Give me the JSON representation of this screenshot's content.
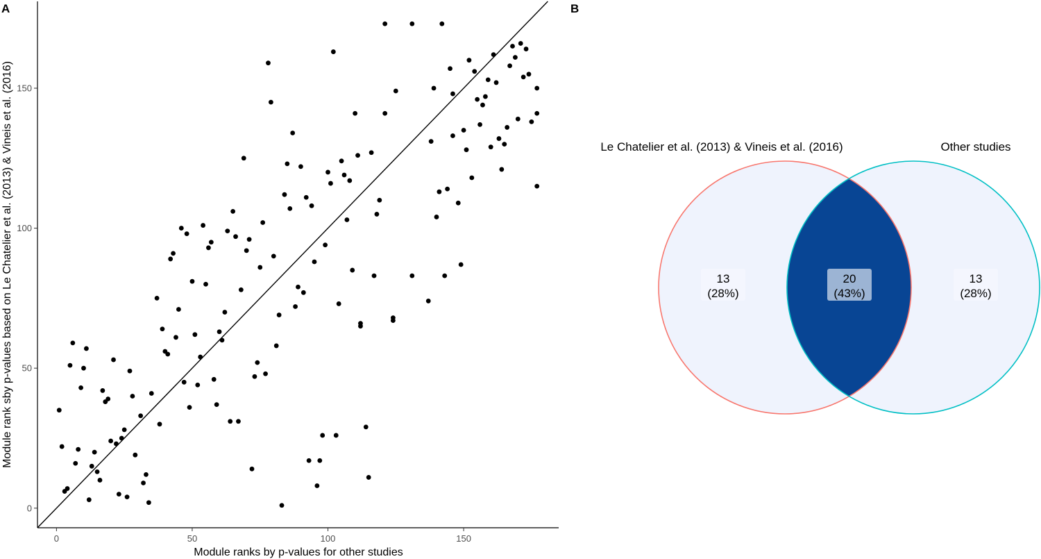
{
  "panels": {
    "a": "A",
    "b": "B"
  },
  "chart_data": [
    {
      "type": "scatter",
      "panel": "A",
      "xlabel": "Module ranks by p-values for other studies",
      "ylabel": "Module rank sby p-values based on Le Chatelier et al. (2013) & Vineis et al. (2016)",
      "xlim": [
        -7,
        185
      ],
      "ylim": [
        -7,
        181
      ],
      "xticks": [
        0,
        50,
        100,
        150
      ],
      "yticks": [
        0,
        50,
        100,
        150
      ],
      "grid": false,
      "reference_line": "y = x",
      "points": [
        [
          1,
          35
        ],
        [
          2,
          22
        ],
        [
          3,
          6
        ],
        [
          4,
          7
        ],
        [
          5,
          51
        ],
        [
          6,
          59
        ],
        [
          7,
          16
        ],
        [
          8,
          21
        ],
        [
          9,
          43
        ],
        [
          10,
          50
        ],
        [
          11,
          57
        ],
        [
          12,
          3
        ],
        [
          13,
          15
        ],
        [
          14,
          20
        ],
        [
          15,
          13
        ],
        [
          16,
          10
        ],
        [
          17,
          42
        ],
        [
          18,
          38
        ],
        [
          19,
          39
        ],
        [
          20,
          24
        ],
        [
          21,
          53
        ],
        [
          22,
          23
        ],
        [
          23,
          5
        ],
        [
          24,
          25
        ],
        [
          25,
          28
        ],
        [
          26,
          4
        ],
        [
          27,
          49
        ],
        [
          28,
          40
        ],
        [
          29,
          19
        ],
        [
          31,
          33
        ],
        [
          32,
          9
        ],
        [
          33,
          12
        ],
        [
          34,
          2
        ],
        [
          35,
          41
        ],
        [
          37,
          75
        ],
        [
          38,
          30
        ],
        [
          39,
          64
        ],
        [
          40,
          56
        ],
        [
          41,
          55
        ],
        [
          42,
          89
        ],
        [
          43,
          91
        ],
        [
          44,
          61
        ],
        [
          45,
          71
        ],
        [
          46,
          100
        ],
        [
          47,
          45
        ],
        [
          48,
          98
        ],
        [
          49,
          36
        ],
        [
          50,
          81
        ],
        [
          51,
          62
        ],
        [
          52,
          44
        ],
        [
          53,
          54
        ],
        [
          54,
          101
        ],
        [
          55,
          80
        ],
        [
          56,
          93
        ],
        [
          57,
          95
        ],
        [
          58,
          46
        ],
        [
          59,
          37
        ],
        [
          60,
          63
        ],
        [
          61,
          60
        ],
        [
          62,
          70
        ],
        [
          63,
          99
        ],
        [
          64,
          31
        ],
        [
          65,
          106
        ],
        [
          66,
          97
        ],
        [
          67,
          31
        ],
        [
          68,
          78
        ],
        [
          69,
          125
        ],
        [
          70,
          92
        ],
        [
          71,
          96
        ],
        [
          72,
          14
        ],
        [
          73,
          47
        ],
        [
          74,
          52
        ],
        [
          75,
          86
        ],
        [
          76,
          102
        ],
        [
          77,
          48
        ],
        [
          78,
          159
        ],
        [
          79,
          145
        ],
        [
          80,
          90
        ],
        [
          81,
          58
        ],
        [
          82,
          69
        ],
        [
          83,
          1
        ],
        [
          84,
          112
        ],
        [
          85,
          123
        ],
        [
          86,
          107
        ],
        [
          87,
          134
        ],
        [
          88,
          72
        ],
        [
          89,
          79
        ],
        [
          90,
          122
        ],
        [
          91,
          77
        ],
        [
          92,
          111
        ],
        [
          93,
          17
        ],
        [
          94,
          108
        ],
        [
          95,
          88
        ],
        [
          96,
          8
        ],
        [
          97,
          17
        ],
        [
          98,
          26
        ],
        [
          99,
          94
        ],
        [
          100,
          120
        ],
        [
          101,
          116
        ],
        [
          102,
          163
        ],
        [
          103,
          26
        ],
        [
          104,
          73
        ],
        [
          105,
          124
        ],
        [
          106,
          119
        ],
        [
          107,
          103
        ],
        [
          108,
          117
        ],
        [
          109,
          85
        ],
        [
          110,
          141
        ],
        [
          111,
          126
        ],
        [
          112,
          66
        ],
        [
          112,
          65
        ],
        [
          114,
          29
        ],
        [
          115,
          11
        ],
        [
          116,
          127
        ],
        [
          117,
          83
        ],
        [
          118,
          105
        ],
        [
          119,
          110
        ],
        [
          121,
          173
        ],
        [
          121,
          141
        ],
        [
          124,
          67
        ],
        [
          124,
          68
        ],
        [
          125,
          149
        ],
        [
          131,
          173
        ],
        [
          131,
          83
        ],
        [
          137,
          74
        ],
        [
          138,
          131
        ],
        [
          139,
          150
        ],
        [
          140,
          104
        ],
        [
          141,
          113
        ],
        [
          142,
          173
        ],
        [
          143,
          83
        ],
        [
          144,
          114
        ],
        [
          145,
          157
        ],
        [
          146,
          133
        ],
        [
          146,
          148
        ],
        [
          148,
          109
        ],
        [
          149,
          87
        ],
        [
          150,
          135
        ],
        [
          151,
          128
        ],
        [
          152,
          160
        ],
        [
          153,
          118
        ],
        [
          154,
          156
        ],
        [
          155,
          146
        ],
        [
          156,
          137
        ],
        [
          157,
          144
        ],
        [
          158,
          147
        ],
        [
          159,
          153
        ],
        [
          160,
          129
        ],
        [
          161,
          162
        ],
        [
          162,
          152
        ],
        [
          163,
          132
        ],
        [
          164,
          121
        ],
        [
          165,
          130
        ],
        [
          166,
          136
        ],
        [
          167,
          158
        ],
        [
          168,
          165
        ],
        [
          169,
          161
        ],
        [
          170,
          139
        ],
        [
          171,
          166
        ],
        [
          172,
          154
        ],
        [
          173,
          164
        ],
        [
          174,
          155
        ],
        [
          175,
          138
        ],
        [
          177,
          141
        ],
        [
          177,
          150
        ],
        [
          177,
          115
        ]
      ]
    },
    {
      "type": "venn",
      "panel": "B",
      "sets": [
        {
          "name": "Le Chatelier et al. (2013) & Vineis et al. (2016)",
          "color": "#f8766d",
          "only_count": "13",
          "only_pct": "(28%)"
        },
        {
          "name": "Other studies",
          "color": "#00bfc4",
          "only_count": "13",
          "only_pct": "(28%)"
        }
      ],
      "intersection": {
        "count": "20",
        "pct": "(43%)"
      },
      "fill_colors": {
        "exclusive": "#eff3fd",
        "intersection": "#084594"
      }
    }
  ]
}
